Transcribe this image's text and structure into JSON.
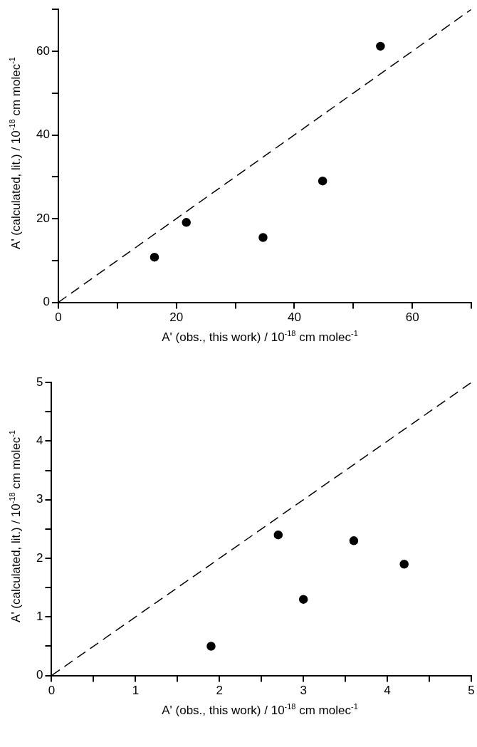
{
  "chart_data": [
    {
      "type": "scatter",
      "xlabel": "A' (obs., this work) / 10$^{-18}$ cm molec$^{-1}$",
      "ylabel": "A' (calculated, lit.) / 10$^{-18}$ cm molec$^{-1}$",
      "xlim": [
        0,
        70
      ],
      "ylim": [
        0,
        70
      ],
      "xticks": [
        0,
        {
          "value": 10,
          "label": null
        },
        20,
        {
          "value": 30,
          "label": null
        },
        40,
        {
          "value": 50,
          "label": null
        },
        60,
        {
          "value": 70,
          "label": null
        }
      ],
      "yticks": [
        0,
        {
          "value": 10,
          "label": null
        },
        20,
        {
          "value": 30,
          "label": null
        },
        40,
        {
          "value": 50,
          "label": null
        },
        60,
        {
          "value": 70,
          "label": null
        }
      ],
      "series": [
        {
          "type": "scatter",
          "color": "#000000",
          "marker": "circle",
          "x": [
            16.3,
            21.7,
            34.7,
            44.8,
            54.6
          ],
          "values": [
            10.8,
            19.1,
            15.5,
            29.0,
            61.2
          ]
        },
        {
          "type": "line",
          "color": "#000000",
          "line_style": "dashed",
          "marker": "none",
          "x": [
            0,
            70
          ],
          "values": [
            0,
            70
          ]
        }
      ]
    },
    {
      "type": "scatter",
      "xlabel": "A' (obs., this work) / 10$^{-18}$ cm molec$^{-1}$",
      "ylabel": "A' (calculated, lit.) / 10$^{-18}$ cm molec$^{-1}$",
      "xlim": [
        0,
        5
      ],
      "ylim": [
        0,
        5
      ],
      "xticks": [
        0,
        {
          "value": 0.5,
          "label": null
        },
        1,
        {
          "value": 1.5,
          "label": null
        },
        2,
        {
          "value": 2.5,
          "label": null
        },
        3,
        {
          "value": 3.5,
          "label": null
        },
        4,
        {
          "value": 4.5,
          "label": null
        },
        5
      ],
      "yticks": [
        0,
        {
          "value": 0.5,
          "label": null
        },
        1,
        {
          "value": 1.5,
          "label": null
        },
        2,
        {
          "value": 2.5,
          "label": null
        },
        3,
        {
          "value": 3.5,
          "label": null
        },
        4,
        {
          "value": 4.5,
          "label": null
        },
        5
      ],
      "series": [
        {
          "type": "scatter",
          "color": "#000000",
          "marker": "circle",
          "x": [
            1.9,
            2.7,
            3.0,
            3.6,
            4.2
          ],
          "values": [
            0.5,
            2.4,
            1.3,
            2.3,
            1.9
          ]
        },
        {
          "type": "line",
          "color": "#000000",
          "line_style": "dashed",
          "marker": "none",
          "x": [
            0,
            5
          ],
          "values": [
            0,
            5
          ]
        }
      ]
    }
  ]
}
